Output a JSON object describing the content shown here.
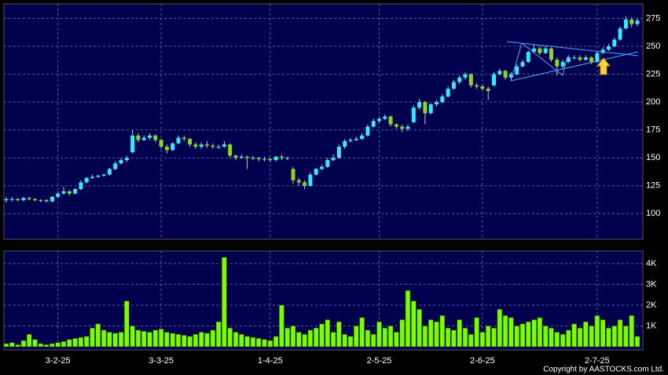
{
  "chart_data": [
    {
      "type": "candlestick",
      "categories": [
        null,
        null,
        null,
        null,
        null,
        null,
        null,
        null,
        null,
        "3-2-25",
        null,
        null,
        null,
        null,
        null,
        null,
        null,
        null,
        null,
        null,
        null,
        null,
        null,
        null,
        null,
        null,
        null,
        "3-3-25",
        null,
        null,
        null,
        null,
        null,
        null,
        null,
        null,
        null,
        null,
        null,
        null,
        null,
        null,
        null,
        null,
        null,
        null,
        "1-4-25",
        null,
        null,
        null,
        null,
        null,
        null,
        null,
        null,
        null,
        null,
        null,
        null,
        null,
        null,
        null,
        null,
        null,
        null,
        "2-5-25",
        null,
        null,
        null,
        null,
        null,
        null,
        null,
        null,
        null,
        null,
        null,
        null,
        null,
        null,
        null,
        null,
        null,
        "2-6-25",
        null,
        null,
        null,
        null,
        null,
        null,
        null,
        null,
        null,
        null,
        null,
        null,
        null,
        null,
        null,
        null,
        null,
        null,
        null,
        "2-7-25",
        null,
        null,
        null,
        null,
        null,
        null,
        null
      ],
      "open": [
        112,
        113,
        113,
        112,
        114,
        113,
        112,
        112,
        111,
        115,
        118,
        120,
        118,
        122,
        128,
        132,
        133,
        134,
        135,
        140,
        145,
        148,
        155,
        170,
        166,
        168,
        170,
        166,
        160,
        157,
        163,
        168,
        167,
        162,
        160,
        162,
        161,
        160,
        160,
        162,
        152,
        150,
        151,
        150,
        150,
        149,
        149,
        148,
        151,
        150,
        140,
        130,
        128,
        125,
        135,
        140,
        142,
        148,
        150,
        160,
        165,
        166,
        167,
        170,
        178,
        183,
        185,
        187,
        180,
        178,
        176,
        182,
        195,
        200,
        190,
        198,
        200,
        205,
        212,
        218,
        222,
        225,
        215,
        214,
        212,
        215,
        225,
        228,
        222,
        225,
        232,
        236,
        245,
        248,
        244,
        248,
        238,
        232,
        236,
        240,
        240,
        238,
        240,
        236,
        244,
        247,
        250,
        256,
        266,
        274,
        270
      ],
      "high": [
        115,
        115,
        114,
        115,
        115,
        114,
        113,
        113,
        116,
        120,
        124,
        121,
        123,
        130,
        133,
        135,
        135,
        136,
        141,
        147,
        150,
        152,
        175,
        172,
        170,
        172,
        171,
        167,
        162,
        164,
        170,
        170,
        168,
        164,
        164,
        165,
        163,
        162,
        165,
        163,
        153,
        153,
        152,
        152,
        151,
        151,
        150,
        152,
        153,
        151,
        142,
        132,
        130,
        137,
        141,
        144,
        150,
        153,
        162,
        167,
        168,
        169,
        172,
        180,
        185,
        187,
        189,
        188,
        181,
        180,
        180,
        197,
        203,
        201,
        199,
        202,
        207,
        214,
        220,
        224,
        227,
        226,
        217,
        216,
        214,
        227,
        230,
        229,
        227,
        234,
        238,
        246,
        252,
        250,
        250,
        249,
        240,
        238,
        242,
        242,
        242,
        242,
        241,
        246,
        249,
        252,
        258,
        268,
        277,
        276,
        275
      ],
      "low": [
        110,
        111,
        111,
        111,
        112,
        111,
        110,
        110,
        110,
        114,
        117,
        116,
        117,
        121,
        127,
        131,
        132,
        133,
        134,
        139,
        144,
        146,
        154,
        164,
        165,
        166,
        164,
        158,
        154,
        156,
        162,
        165,
        160,
        158,
        158,
        159,
        158,
        158,
        159,
        150,
        148,
        149,
        140,
        148,
        147,
        147,
        146,
        147,
        148,
        148,
        127,
        125,
        122,
        124,
        134,
        139,
        141,
        147,
        149,
        158,
        164,
        165,
        166,
        169,
        177,
        181,
        184,
        178,
        176,
        173,
        174,
        181,
        193,
        180,
        189,
        196,
        199,
        204,
        211,
        216,
        220,
        213,
        212,
        210,
        202,
        214,
        224,
        220,
        220,
        224,
        231,
        235,
        244,
        242,
        243,
        236,
        224,
        230,
        235,
        238,
        236,
        237,
        234,
        235,
        243,
        246,
        249,
        255,
        265,
        267,
        268
      ],
      "close": [
        113,
        113,
        112,
        114,
        113,
        112,
        112,
        111,
        115,
        118,
        120,
        118,
        122,
        128,
        132,
        133,
        134,
        135,
        140,
        145,
        148,
        150,
        170,
        166,
        168,
        170,
        166,
        160,
        157,
        163,
        168,
        167,
        162,
        160,
        162,
        161,
        160,
        160,
        162,
        152,
        150,
        151,
        150,
        150,
        149,
        149,
        148,
        151,
        150,
        150,
        130,
        128,
        125,
        135,
        140,
        142,
        148,
        150,
        160,
        165,
        166,
        167,
        170,
        178,
        183,
        185,
        187,
        180,
        178,
        176,
        178,
        195,
        200,
        190,
        198,
        200,
        205,
        212,
        218,
        222,
        225,
        215,
        214,
        212,
        210,
        225,
        228,
        222,
        225,
        232,
        236,
        245,
        248,
        244,
        248,
        238,
        232,
        236,
        240,
        240,
        238,
        240,
        236,
        244,
        247,
        250,
        256,
        266,
        274,
        270,
        273
      ],
      "up_color": "#33e8ff",
      "down_color": "#8ed61c",
      "ylim": [
        77,
        288
      ],
      "yticks": [
        100,
        125,
        150,
        175,
        200,
        225,
        250,
        275
      ],
      "grid": true
    },
    {
      "type": "bar",
      "values": [
        150,
        200,
        100,
        300,
        600,
        350,
        150,
        100,
        150,
        200,
        250,
        350,
        400,
        450,
        500,
        900,
        1100,
        800,
        700,
        650,
        700,
        2200,
        1000,
        800,
        750,
        700,
        800,
        850,
        700,
        650,
        600,
        550,
        500,
        600,
        700,
        650,
        800,
        1200,
        4300,
        900,
        700,
        600,
        500,
        450,
        400,
        350,
        300,
        500,
        2000,
        900,
        1000,
        700,
        600,
        800,
        900,
        1100,
        1300,
        700,
        1200,
        600,
        500,
        1000,
        1400,
        800,
        600,
        1200,
        900,
        1000,
        700,
        1300,
        2700,
        2200,
        1800,
        1000,
        1300,
        1200,
        1500,
        900,
        800,
        1300,
        900,
        600,
        1400,
        700,
        1000,
        900,
        1800,
        1500,
        1400,
        1000,
        1100,
        1200,
        1300,
        1400,
        1000,
        900,
        700,
        600,
        800,
        1100,
        900,
        1200,
        1000,
        1500,
        1300,
        900,
        1000,
        1300,
        1000,
        1500,
        500
      ],
      "color": "#7cfc00",
      "ylim": [
        0,
        4600
      ],
      "yticks": [
        {
          "value": 1000,
          "label": "1K"
        },
        {
          "value": 2000,
          "label": "2K"
        },
        {
          "value": 3000,
          "label": "3K"
        },
        {
          "value": 4000,
          "label": "4K"
        }
      ],
      "grid": true
    }
  ],
  "copyright": "Copyright by AASTOCKS.com Ltd."
}
